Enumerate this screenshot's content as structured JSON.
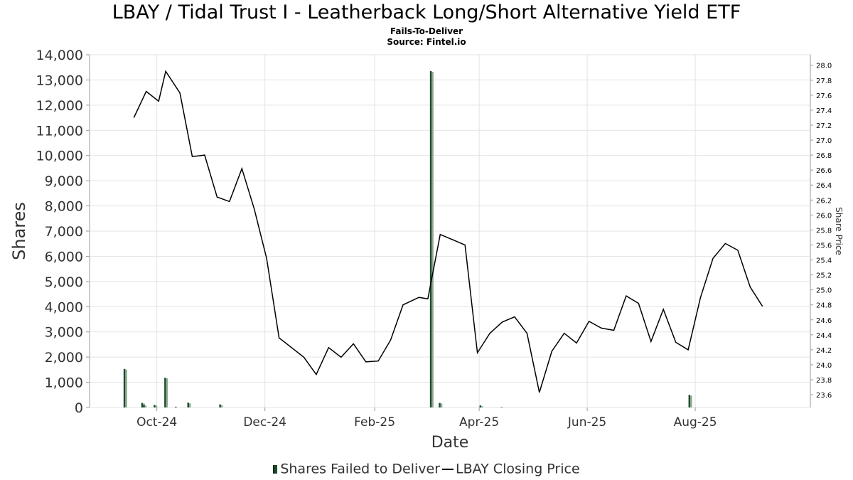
{
  "chart_data": {
    "type": "bar+line",
    "title": "LBAY / Tidal Trust I - Leatherback Long/Short Alternative Yield ETF",
    "subtitle": "Fails-To-Deliver",
    "source": "Source: Fintel.io",
    "xlabel": "Date",
    "ylabel_left": "Shares",
    "ylabel_right": "Share Price",
    "x_range": [
      "2024-08-24",
      "2025-10-05"
    ],
    "x_ticks": [
      {
        "date": "2024-10-01",
        "label": "Oct-24"
      },
      {
        "date": "2024-12-01",
        "label": "Dec-24"
      },
      {
        "date": "2025-02-01",
        "label": "Feb-25"
      },
      {
        "date": "2025-04-01",
        "label": "Apr-25"
      },
      {
        "date": "2025-06-01",
        "label": "Jun-25"
      },
      {
        "date": "2025-08-01",
        "label": "Aug-25"
      }
    ],
    "ylim_left": [
      0,
      14000
    ],
    "left_ticks": [
      "0",
      "1,000",
      "2,000",
      "3,000",
      "4,000",
      "5,000",
      "6,000",
      "7,000",
      "8,000",
      "9,000",
      "10,000",
      "11,000",
      "12,000",
      "13,000",
      "14,000"
    ],
    "ylim_right": [
      23.43,
      28.14
    ],
    "right_ticks": [
      "23.6",
      "23.8",
      "24.0",
      "24.2",
      "24.4",
      "24.6",
      "24.8",
      "25.0",
      "25.2",
      "25.4",
      "25.6",
      "25.8",
      "26.0",
      "26.2",
      "26.4",
      "26.6",
      "26.8",
      "27.0",
      "27.2",
      "27.4",
      "27.6",
      "27.8",
      "28.0"
    ],
    "grid": true,
    "legend_position": "bottom",
    "series": [
      {
        "name": "Shares Failed to Deliver",
        "type": "bar",
        "color": "#1b4d2b",
        "points": [
          {
            "date": "2024-09-13",
            "value": 1530
          },
          {
            "date": "2024-09-23",
            "value": 180
          },
          {
            "date": "2024-09-24",
            "value": 100
          },
          {
            "date": "2024-09-30",
            "value": 100
          },
          {
            "date": "2024-10-06",
            "value": 1180
          },
          {
            "date": "2024-10-12",
            "value": 30
          },
          {
            "date": "2024-10-19",
            "value": 190
          },
          {
            "date": "2024-11-06",
            "value": 120
          },
          {
            "date": "2025-03-05",
            "value": 13350
          },
          {
            "date": "2025-03-10",
            "value": 180
          },
          {
            "date": "2025-04-02",
            "value": 80
          },
          {
            "date": "2025-04-14",
            "value": 20
          },
          {
            "date": "2025-07-29",
            "value": 500
          }
        ]
      },
      {
        "name": "LBAY Closing Price",
        "type": "line",
        "color": "#000000",
        "points": [
          {
            "date": "2024-09-18",
            "value": 27.3
          },
          {
            "date": "2024-09-25",
            "value": 27.65
          },
          {
            "date": "2024-10-02",
            "value": 27.52
          },
          {
            "date": "2024-10-06",
            "value": 27.92
          },
          {
            "date": "2024-10-14",
            "value": 27.63
          },
          {
            "date": "2024-10-21",
            "value": 26.78
          },
          {
            "date": "2024-10-28",
            "value": 26.8
          },
          {
            "date": "2024-11-04",
            "value": 26.24
          },
          {
            "date": "2024-11-11",
            "value": 26.18
          },
          {
            "date": "2024-11-18",
            "value": 26.62
          },
          {
            "date": "2024-11-25",
            "value": 26.08
          },
          {
            "date": "2024-12-02",
            "value": 25.42
          },
          {
            "date": "2024-12-09",
            "value": 24.36
          },
          {
            "date": "2024-12-23",
            "value": 24.1
          },
          {
            "date": "2024-12-30",
            "value": 23.87
          },
          {
            "date": "2025-01-06",
            "value": 24.23
          },
          {
            "date": "2025-01-13",
            "value": 24.1
          },
          {
            "date": "2025-01-20",
            "value": 24.28
          },
          {
            "date": "2025-01-27",
            "value": 24.04
          },
          {
            "date": "2025-02-03",
            "value": 24.05
          },
          {
            "date": "2025-02-10",
            "value": 24.33
          },
          {
            "date": "2025-02-17",
            "value": 24.8
          },
          {
            "date": "2025-02-26",
            "value": 24.9
          },
          {
            "date": "2025-03-03",
            "value": 24.88
          },
          {
            "date": "2025-03-10",
            "value": 25.74
          },
          {
            "date": "2025-03-24",
            "value": 25.6
          },
          {
            "date": "2025-03-31",
            "value": 24.16
          },
          {
            "date": "2025-04-07",
            "value": 24.42
          },
          {
            "date": "2025-04-14",
            "value": 24.57
          },
          {
            "date": "2025-04-21",
            "value": 24.64
          },
          {
            "date": "2025-04-28",
            "value": 24.42
          },
          {
            "date": "2025-05-05",
            "value": 23.63
          },
          {
            "date": "2025-05-12",
            "value": 24.18
          },
          {
            "date": "2025-05-19",
            "value": 24.42
          },
          {
            "date": "2025-05-26",
            "value": 24.29
          },
          {
            "date": "2025-06-02",
            "value": 24.58
          },
          {
            "date": "2025-06-09",
            "value": 24.49
          },
          {
            "date": "2025-06-16",
            "value": 24.46
          },
          {
            "date": "2025-06-23",
            "value": 24.92
          },
          {
            "date": "2025-06-30",
            "value": 24.82
          },
          {
            "date": "2025-07-07",
            "value": 24.31
          },
          {
            "date": "2025-07-14",
            "value": 24.74
          },
          {
            "date": "2025-07-21",
            "value": 24.3
          },
          {
            "date": "2025-07-28",
            "value": 24.2
          },
          {
            "date": "2025-08-04",
            "value": 24.9
          },
          {
            "date": "2025-08-11",
            "value": 25.42
          },
          {
            "date": "2025-08-18",
            "value": 25.62
          },
          {
            "date": "2025-08-25",
            "value": 25.53
          },
          {
            "date": "2025-09-01",
            "value": 25.04
          },
          {
            "date": "2025-09-08",
            "value": 24.78
          }
        ]
      }
    ]
  },
  "legend": {
    "bar_label": "Shares Failed to Deliver",
    "line_label": "LBAY Closing Price"
  }
}
